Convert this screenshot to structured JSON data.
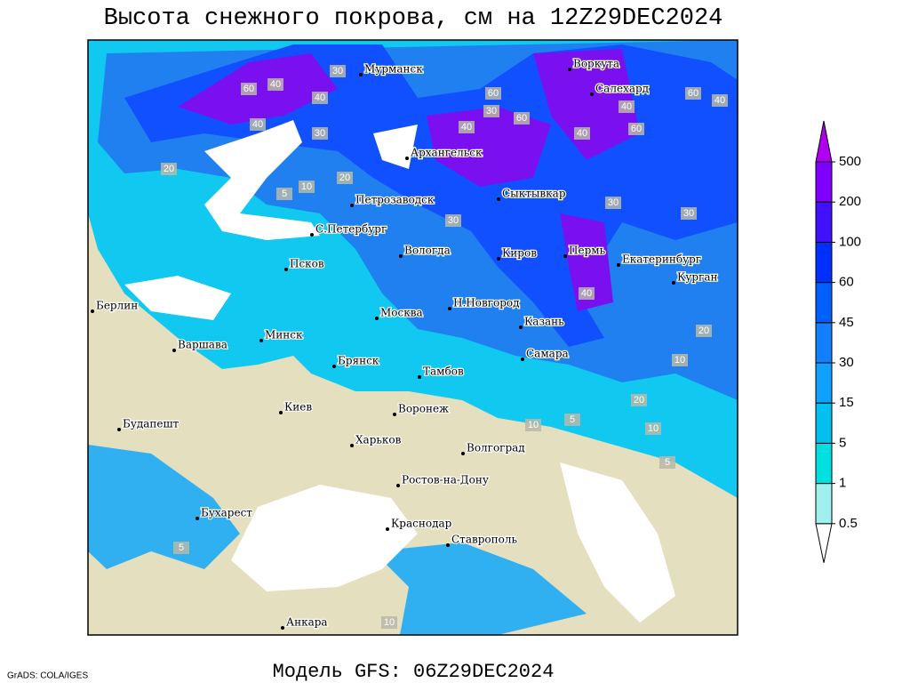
{
  "header": {
    "title": "Высота снежного покрова, см на 12Z29DEC2024"
  },
  "footer": {
    "model": "Модель GFS: 06Z29DEC2024",
    "credit": "GrADS: COLA/IGES"
  },
  "cities": [
    "Мурманск",
    "Воркута",
    "Салехард",
    "Архангельск",
    "Сыктывкар",
    "Петрозаводск",
    "С.Петербург",
    "Вологда",
    "Киров",
    "Пермь",
    "Екатеринбург",
    "Курган",
    "Псков",
    "Берлин",
    "Н.Новгород",
    "Москва",
    "Казань",
    "Варшава",
    "Минск",
    "Самара",
    "Брянск",
    "Тамбов",
    "Киев",
    "Воронеж",
    "Харьков",
    "Будапешт",
    "Волгоград",
    "Ростов-на-Дону",
    "Бухарест",
    "Краснодар",
    "Ставрополь",
    "Анкара"
  ],
  "contour_labels": [
    60,
    40,
    40,
    30,
    40,
    30,
    60,
    40,
    60,
    30,
    40,
    60,
    60,
    40,
    40,
    30,
    30,
    20,
    10,
    5,
    20,
    30,
    40,
    20,
    10,
    10,
    5,
    20,
    5,
    10,
    5,
    10
  ],
  "colorbar": {
    "levels": [
      0.5,
      1,
      5,
      15,
      30,
      45,
      60,
      100,
      200,
      500
    ],
    "colors": [
      "#ffffff",
      "#a0f0f0",
      "#00e0e0",
      "#00c0f0",
      "#10a0ff",
      "#1080ff",
      "#0060ff",
      "#0030ff",
      "#4010ff",
      "#8000ff",
      "#b000f0"
    ]
  }
}
